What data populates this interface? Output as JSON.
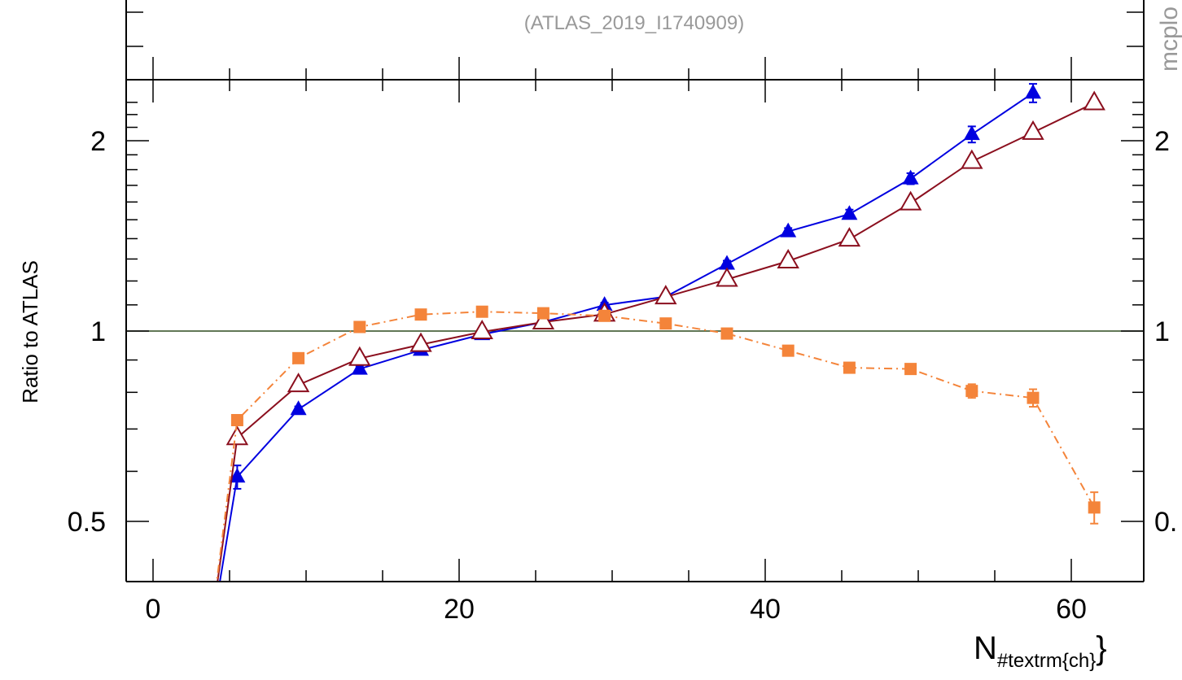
{
  "header": {
    "reference": "(ATLAS_2019_I1740909)",
    "side_text": "mcplo"
  },
  "chart_data": {
    "type": "line",
    "ylabel": "Ratio to ATLAS",
    "xlabel_main": "N",
    "xlabel_sub": "#textrm{ch}",
    "xlim": [
      -2,
      64
    ],
    "ylim": [
      0.4,
      2.35
    ],
    "yscale": "log",
    "x_ticks": [
      0,
      20,
      40,
      60
    ],
    "x_tick_labels": [
      "0",
      "20",
      "40",
      "60"
    ],
    "y_ticks": [
      0.5,
      1,
      2
    ],
    "y_tick_labels": [
      "0.5",
      "1",
      "2"
    ],
    "right_y_tick_labels": [
      "0.",
      "1",
      "2"
    ],
    "reference_line": 1,
    "colors": {
      "reference": "#2e4a1f",
      "blue": "#0000e0",
      "red": "#8b0f1e",
      "orange": "#f4843a",
      "grey_text": "#999999"
    },
    "series": [
      {
        "marker": "filled-triangle",
        "color": "#0000e0",
        "dash": "solid",
        "x": [
          3.5,
          5.5,
          9.5,
          13.5,
          17.5,
          21.5,
          25.5,
          29.5,
          33.5,
          37.5,
          41.5,
          45.5,
          49.5,
          53.5,
          57.5
        ],
        "y": [
          0.3,
          0.588,
          0.752,
          0.871,
          0.933,
          0.988,
          1.033,
          1.099,
          1.133,
          1.277,
          1.437,
          1.531,
          1.742,
          2.047,
          2.38
        ],
        "err": [
          0,
          0.025,
          0.008,
          0.008,
          0.008,
          0.008,
          0.008,
          0.01,
          0.012,
          0.015,
          0.018,
          0.025,
          0.035,
          0.06,
          0.08
        ]
      },
      {
        "marker": "open-triangle",
        "color": "#8b0f1e",
        "dash": "solid",
        "x": [
          3.5,
          5.5,
          9.5,
          13.5,
          17.5,
          21.5,
          25.5,
          29.5,
          33.5,
          37.5,
          41.5,
          45.5,
          49.5,
          53.5,
          57.5,
          61.5
        ],
        "y": [
          0.3,
          0.678,
          0.822,
          0.905,
          0.952,
          0.997,
          1.033,
          1.063,
          1.132,
          1.207,
          1.29,
          1.397,
          1.594,
          1.854,
          2.061,
          2.295
        ],
        "err": [
          0,
          0,
          0,
          0,
          0,
          0,
          0,
          0,
          0,
          0,
          0,
          0,
          0,
          0,
          0,
          0
        ]
      },
      {
        "marker": "filled-square",
        "color": "#f4843a",
        "dash": "dashdot",
        "x": [
          3.5,
          5.5,
          9.5,
          13.5,
          17.5,
          21.5,
          25.5,
          29.5,
          33.5,
          37.5,
          41.5,
          45.5,
          49.5,
          53.5,
          57.5,
          61.5
        ],
        "y": [
          0.3,
          0.723,
          0.906,
          1.015,
          1.062,
          1.073,
          1.067,
          1.057,
          1.028,
          0.991,
          0.931,
          0.875,
          0.871,
          0.804,
          0.784,
          0.526
        ],
        "err": [
          0,
          0.008,
          0.008,
          0.008,
          0.008,
          0.008,
          0.008,
          0.008,
          0.008,
          0.008,
          0.01,
          0.012,
          0.015,
          0.02,
          0.025,
          0.03
        ]
      }
    ]
  }
}
